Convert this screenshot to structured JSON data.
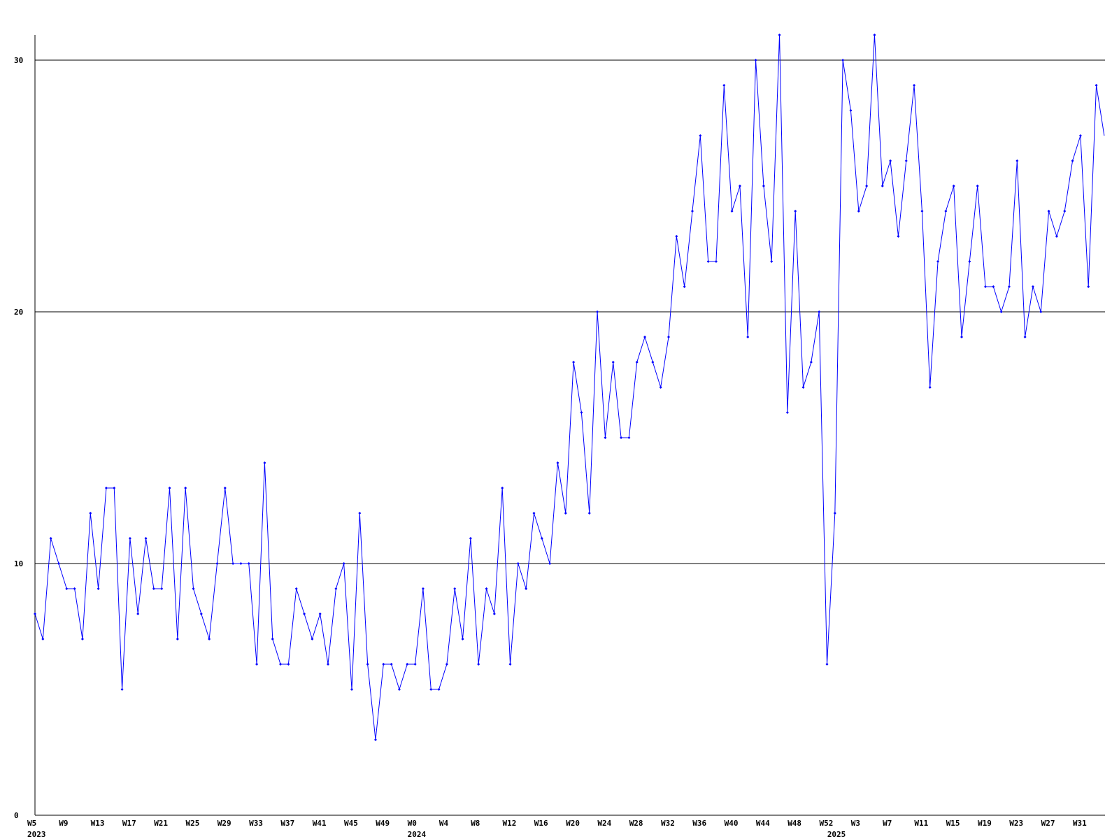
{
  "chart_data": {
    "type": "line",
    "title": "",
    "xlabel": "",
    "ylabel": "",
    "ylim": [
      0,
      31
    ],
    "yticks": [
      0,
      10,
      20,
      30
    ],
    "grid": "horizontal",
    "line_color": "#0000ff",
    "axis_color": "#000000",
    "x_tick_labels": [
      {
        "index": 0,
        "label": "W5"
      },
      {
        "index": 4,
        "label": "W9"
      },
      {
        "index": 8,
        "label": "W13"
      },
      {
        "index": 12,
        "label": "W17"
      },
      {
        "index": 16,
        "label": "W21"
      },
      {
        "index": 20,
        "label": "W25"
      },
      {
        "index": 24,
        "label": "W29"
      },
      {
        "index": 28,
        "label": "W33"
      },
      {
        "index": 32,
        "label": "W37"
      },
      {
        "index": 36,
        "label": "W41"
      },
      {
        "index": 40,
        "label": "W45"
      },
      {
        "index": 44,
        "label": "W49"
      },
      {
        "index": 48,
        "label": "W0"
      },
      {
        "index": 52,
        "label": "W4"
      },
      {
        "index": 56,
        "label": "W8"
      },
      {
        "index": 60,
        "label": "W12"
      },
      {
        "index": 64,
        "label": "W16"
      },
      {
        "index": 68,
        "label": "W20"
      },
      {
        "index": 72,
        "label": "W24"
      },
      {
        "index": 76,
        "label": "W28"
      },
      {
        "index": 80,
        "label": "W32"
      },
      {
        "index": 84,
        "label": "W36"
      },
      {
        "index": 88,
        "label": "W40"
      },
      {
        "index": 92,
        "label": "W44"
      },
      {
        "index": 96,
        "label": "W48"
      },
      {
        "index": 100,
        "label": "W52"
      },
      {
        "index": 104,
        "label": "W3"
      },
      {
        "index": 108,
        "label": "W7"
      },
      {
        "index": 112,
        "label": "W11"
      },
      {
        "index": 116,
        "label": "W15"
      },
      {
        "index": 120,
        "label": "W19"
      },
      {
        "index": 124,
        "label": "W23"
      },
      {
        "index": 128,
        "label": "W27"
      },
      {
        "index": 132,
        "label": "W31"
      }
    ],
    "year_labels": [
      {
        "index": 0,
        "label": "2023"
      },
      {
        "index": 48,
        "label": "2024"
      },
      {
        "index": 101,
        "label": "2025"
      }
    ],
    "series": [
      {
        "values": [
          8,
          7,
          11,
          10,
          9,
          9,
          7,
          12,
          9,
          13,
          13,
          5,
          11,
          8,
          11,
          9,
          9,
          13,
          7,
          13,
          9,
          8,
          7,
          10,
          13,
          10,
          10,
          10,
          6,
          14,
          7,
          6,
          6,
          9,
          8,
          7,
          8,
          6,
          9,
          10,
          5,
          12,
          6,
          3,
          6,
          6,
          5,
          6,
          6,
          9,
          5,
          5,
          6,
          9,
          7,
          11,
          6,
          9,
          8,
          13,
          6,
          10,
          9,
          12,
          11,
          10,
          14,
          12,
          18,
          16,
          12,
          20,
          15,
          18,
          15,
          15,
          18,
          19,
          18,
          17,
          19,
          23,
          21,
          24,
          27,
          22,
          22,
          29,
          24,
          25,
          19,
          30,
          25,
          22,
          31,
          16,
          24,
          17,
          18,
          20,
          6,
          12,
          30,
          28,
          24,
          25,
          31,
          25,
          26,
          23,
          26,
          29,
          24,
          17,
          22,
          24,
          25,
          19,
          22,
          25,
          21,
          21,
          20,
          21,
          26,
          19,
          21,
          20,
          24,
          23,
          24,
          26,
          27,
          21,
          29,
          27
        ]
      }
    ]
  }
}
